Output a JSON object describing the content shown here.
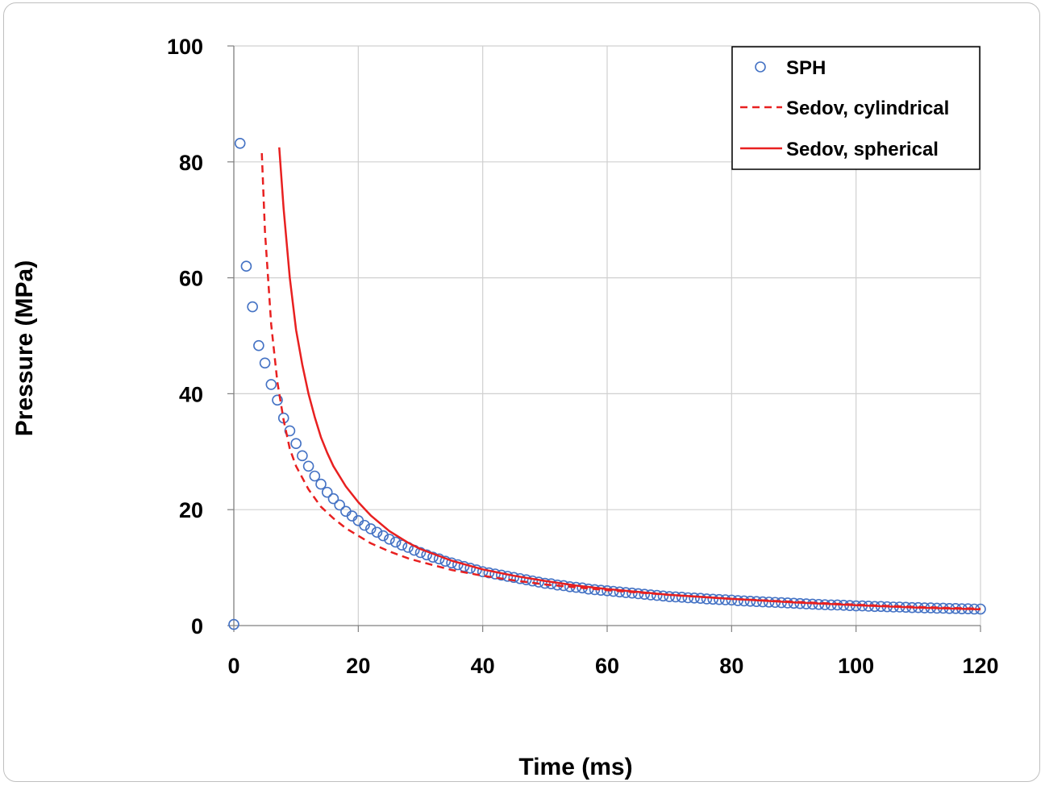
{
  "chart_data": {
    "type": "scatter",
    "title": "",
    "xlabel": "Time (ms)",
    "ylabel": "Pressure (MPa)",
    "xlim": [
      0,
      120
    ],
    "ylim": [
      0,
      100
    ],
    "x_ticks": [
      "0",
      "20",
      "40",
      "60",
      "80",
      "100",
      "120"
    ],
    "y_ticks": [
      "0",
      "20",
      "40",
      "60",
      "80",
      "100"
    ],
    "grid": true,
    "legend_position": "top-right",
    "series": [
      {
        "name": "SPH",
        "style": "open-circle-markers",
        "color": "#4472c4",
        "x": [
          0,
          1,
          2,
          3,
          4,
          5,
          6,
          7,
          8,
          9,
          10,
          11,
          12,
          13,
          14,
          15,
          16,
          17,
          18,
          19,
          20,
          21,
          22,
          23,
          24,
          25,
          26,
          27,
          28,
          29,
          30,
          31,
          32,
          33,
          34,
          35,
          36,
          37,
          38,
          39,
          40,
          41,
          42,
          43,
          44,
          45,
          46,
          47,
          48,
          49,
          50,
          51,
          52,
          53,
          54,
          55,
          56,
          57,
          58,
          59,
          60,
          61,
          62,
          63,
          64,
          65,
          66,
          67,
          68,
          69,
          70,
          71,
          72,
          73,
          74,
          75,
          76,
          77,
          78,
          79,
          80,
          81,
          82,
          83,
          84,
          85,
          86,
          87,
          88,
          89,
          90,
          91,
          92,
          93,
          94,
          95,
          96,
          97,
          98,
          99,
          100,
          101,
          102,
          103,
          104,
          105,
          106,
          107,
          108,
          109,
          110,
          111,
          112,
          113,
          114,
          115,
          116,
          117,
          118,
          119,
          120
        ],
        "y": [
          0.2,
          83.2,
          62.0,
          55.0,
          48.3,
          45.3,
          41.6,
          38.9,
          35.8,
          33.6,
          31.4,
          29.3,
          27.5,
          25.8,
          24.4,
          23.0,
          21.9,
          20.8,
          19.7,
          18.9,
          18.1,
          17.3,
          16.7,
          16.1,
          15.5,
          14.9,
          14.4,
          13.9,
          13.5,
          13.0,
          12.6,
          12.2,
          11.8,
          11.5,
          11.1,
          10.8,
          10.5,
          10.2,
          9.9,
          9.6,
          9.3,
          9.1,
          8.9,
          8.7,
          8.5,
          8.3,
          8.1,
          7.9,
          7.7,
          7.5,
          7.3,
          7.2,
          7.0,
          6.9,
          6.7,
          6.6,
          6.5,
          6.3,
          6.2,
          6.1,
          6.0,
          5.9,
          5.8,
          5.7,
          5.6,
          5.5,
          5.4,
          5.3,
          5.2,
          5.1,
          5.0,
          4.95,
          4.9,
          4.8,
          4.75,
          4.7,
          4.6,
          4.55,
          4.5,
          4.45,
          4.4,
          4.3,
          4.25,
          4.2,
          4.15,
          4.1,
          4.05,
          4.0,
          3.95,
          3.9,
          3.85,
          3.8,
          3.75,
          3.7,
          3.65,
          3.6,
          3.55,
          3.55,
          3.5,
          3.45,
          3.4,
          3.4,
          3.35,
          3.3,
          3.3,
          3.25,
          3.2,
          3.2,
          3.15,
          3.1,
          3.1,
          3.05,
          3.05,
          3.0,
          3.0,
          2.95,
          2.95,
          2.9,
          2.9,
          2.85,
          2.85
        ]
      },
      {
        "name": "Sedov, cylindrical",
        "style": "dashed-line",
        "color": "#e82020",
        "x": [
          4.5,
          5,
          6,
          7,
          8,
          9,
          10,
          12,
          14,
          16,
          18,
          20,
          22,
          25,
          28,
          30,
          35,
          40,
          45,
          50,
          55,
          60,
          70,
          80,
          90,
          100,
          110,
          120
        ],
        "y": [
          81.5,
          68.0,
          52.0,
          42.0,
          35.5,
          30.5,
          27.5,
          23.5,
          20.5,
          18.5,
          16.8,
          15.5,
          14.2,
          12.8,
          11.6,
          11.0,
          9.6,
          8.6,
          7.8,
          7.1,
          6.6,
          6.1,
          5.3,
          4.6,
          4.1,
          3.6,
          3.2,
          2.9
        ]
      },
      {
        "name": "Sedov, spherical",
        "style": "solid-line",
        "color": "#e82020",
        "x": [
          7.3,
          8,
          9,
          10,
          11,
          12,
          13,
          14,
          15,
          16,
          18,
          20,
          22,
          25,
          28,
          30,
          35,
          40,
          45,
          50,
          55,
          60,
          70,
          80,
          90,
          100,
          110,
          120
        ],
        "y": [
          82.5,
          72.0,
          60.0,
          51.0,
          45.0,
          40.0,
          36.0,
          32.5,
          29.8,
          27.5,
          24.0,
          21.3,
          19.0,
          16.3,
          14.3,
          13.2,
          11.2,
          9.7,
          8.6,
          7.7,
          6.9,
          6.3,
          5.3,
          4.6,
          4.0,
          3.5,
          3.1,
          2.8
        ]
      }
    ]
  }
}
